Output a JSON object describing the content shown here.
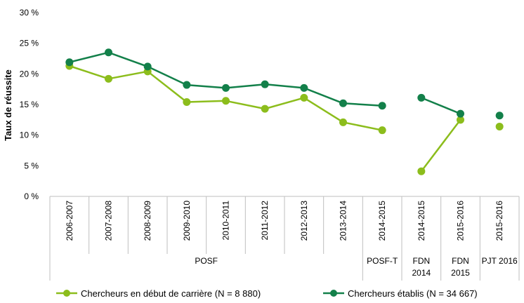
{
  "chart_data": {
    "type": "line",
    "ylabel": "Taux de réussite",
    "ylim": [
      0,
      30
    ],
    "yticks": [
      0,
      5,
      10,
      15,
      20,
      25,
      30
    ],
    "ytick_labels": [
      "0 %",
      "5 %",
      "10 %",
      "15 %",
      "20 %",
      "25 %",
      "30 %"
    ],
    "categories": [
      "2006-2007",
      "2007-2008",
      "2008-2009",
      "2009-2010",
      "2010-2011",
      "2011-2012",
      "2012-2013",
      "2013-2014",
      "2014-2015",
      "2014-2015",
      "2015-2016",
      "2015-2016"
    ],
    "groups": [
      {
        "label": [
          "POSF"
        ],
        "span": [
          0,
          7
        ]
      },
      {
        "label": [
          "POSF-T"
        ],
        "span": [
          8,
          8
        ]
      },
      {
        "label": [
          "FDN",
          "2014"
        ],
        "span": [
          9,
          9
        ]
      },
      {
        "label": [
          "FDN",
          "2015"
        ],
        "span": [
          10,
          10
        ]
      },
      {
        "label": [
          "PJT 2016"
        ],
        "span": [
          11,
          11
        ]
      }
    ],
    "series": [
      {
        "name": "Chercheurs en début de carrière (N = 8 880)",
        "color": "#8cbd1c",
        "values": [
          21.3,
          19.2,
          20.4,
          15.4,
          15.6,
          14.3,
          16.1,
          12.1,
          10.8,
          4.1,
          12.5,
          11.4
        ],
        "segments": [
          [
            0,
            8
          ],
          [
            9,
            10
          ],
          [
            11,
            11
          ]
        ]
      },
      {
        "name": "Chercheurs établis (N = 34 667)",
        "color": "#13804a",
        "values": [
          21.9,
          23.5,
          21.2,
          18.2,
          17.7,
          18.3,
          17.7,
          15.2,
          14.8,
          16.1,
          13.5,
          13.2
        ],
        "segments": [
          [
            0,
            8
          ],
          [
            9,
            10
          ],
          [
            11,
            11
          ]
        ]
      }
    ],
    "grid": false,
    "legend_position": "bottom"
  }
}
